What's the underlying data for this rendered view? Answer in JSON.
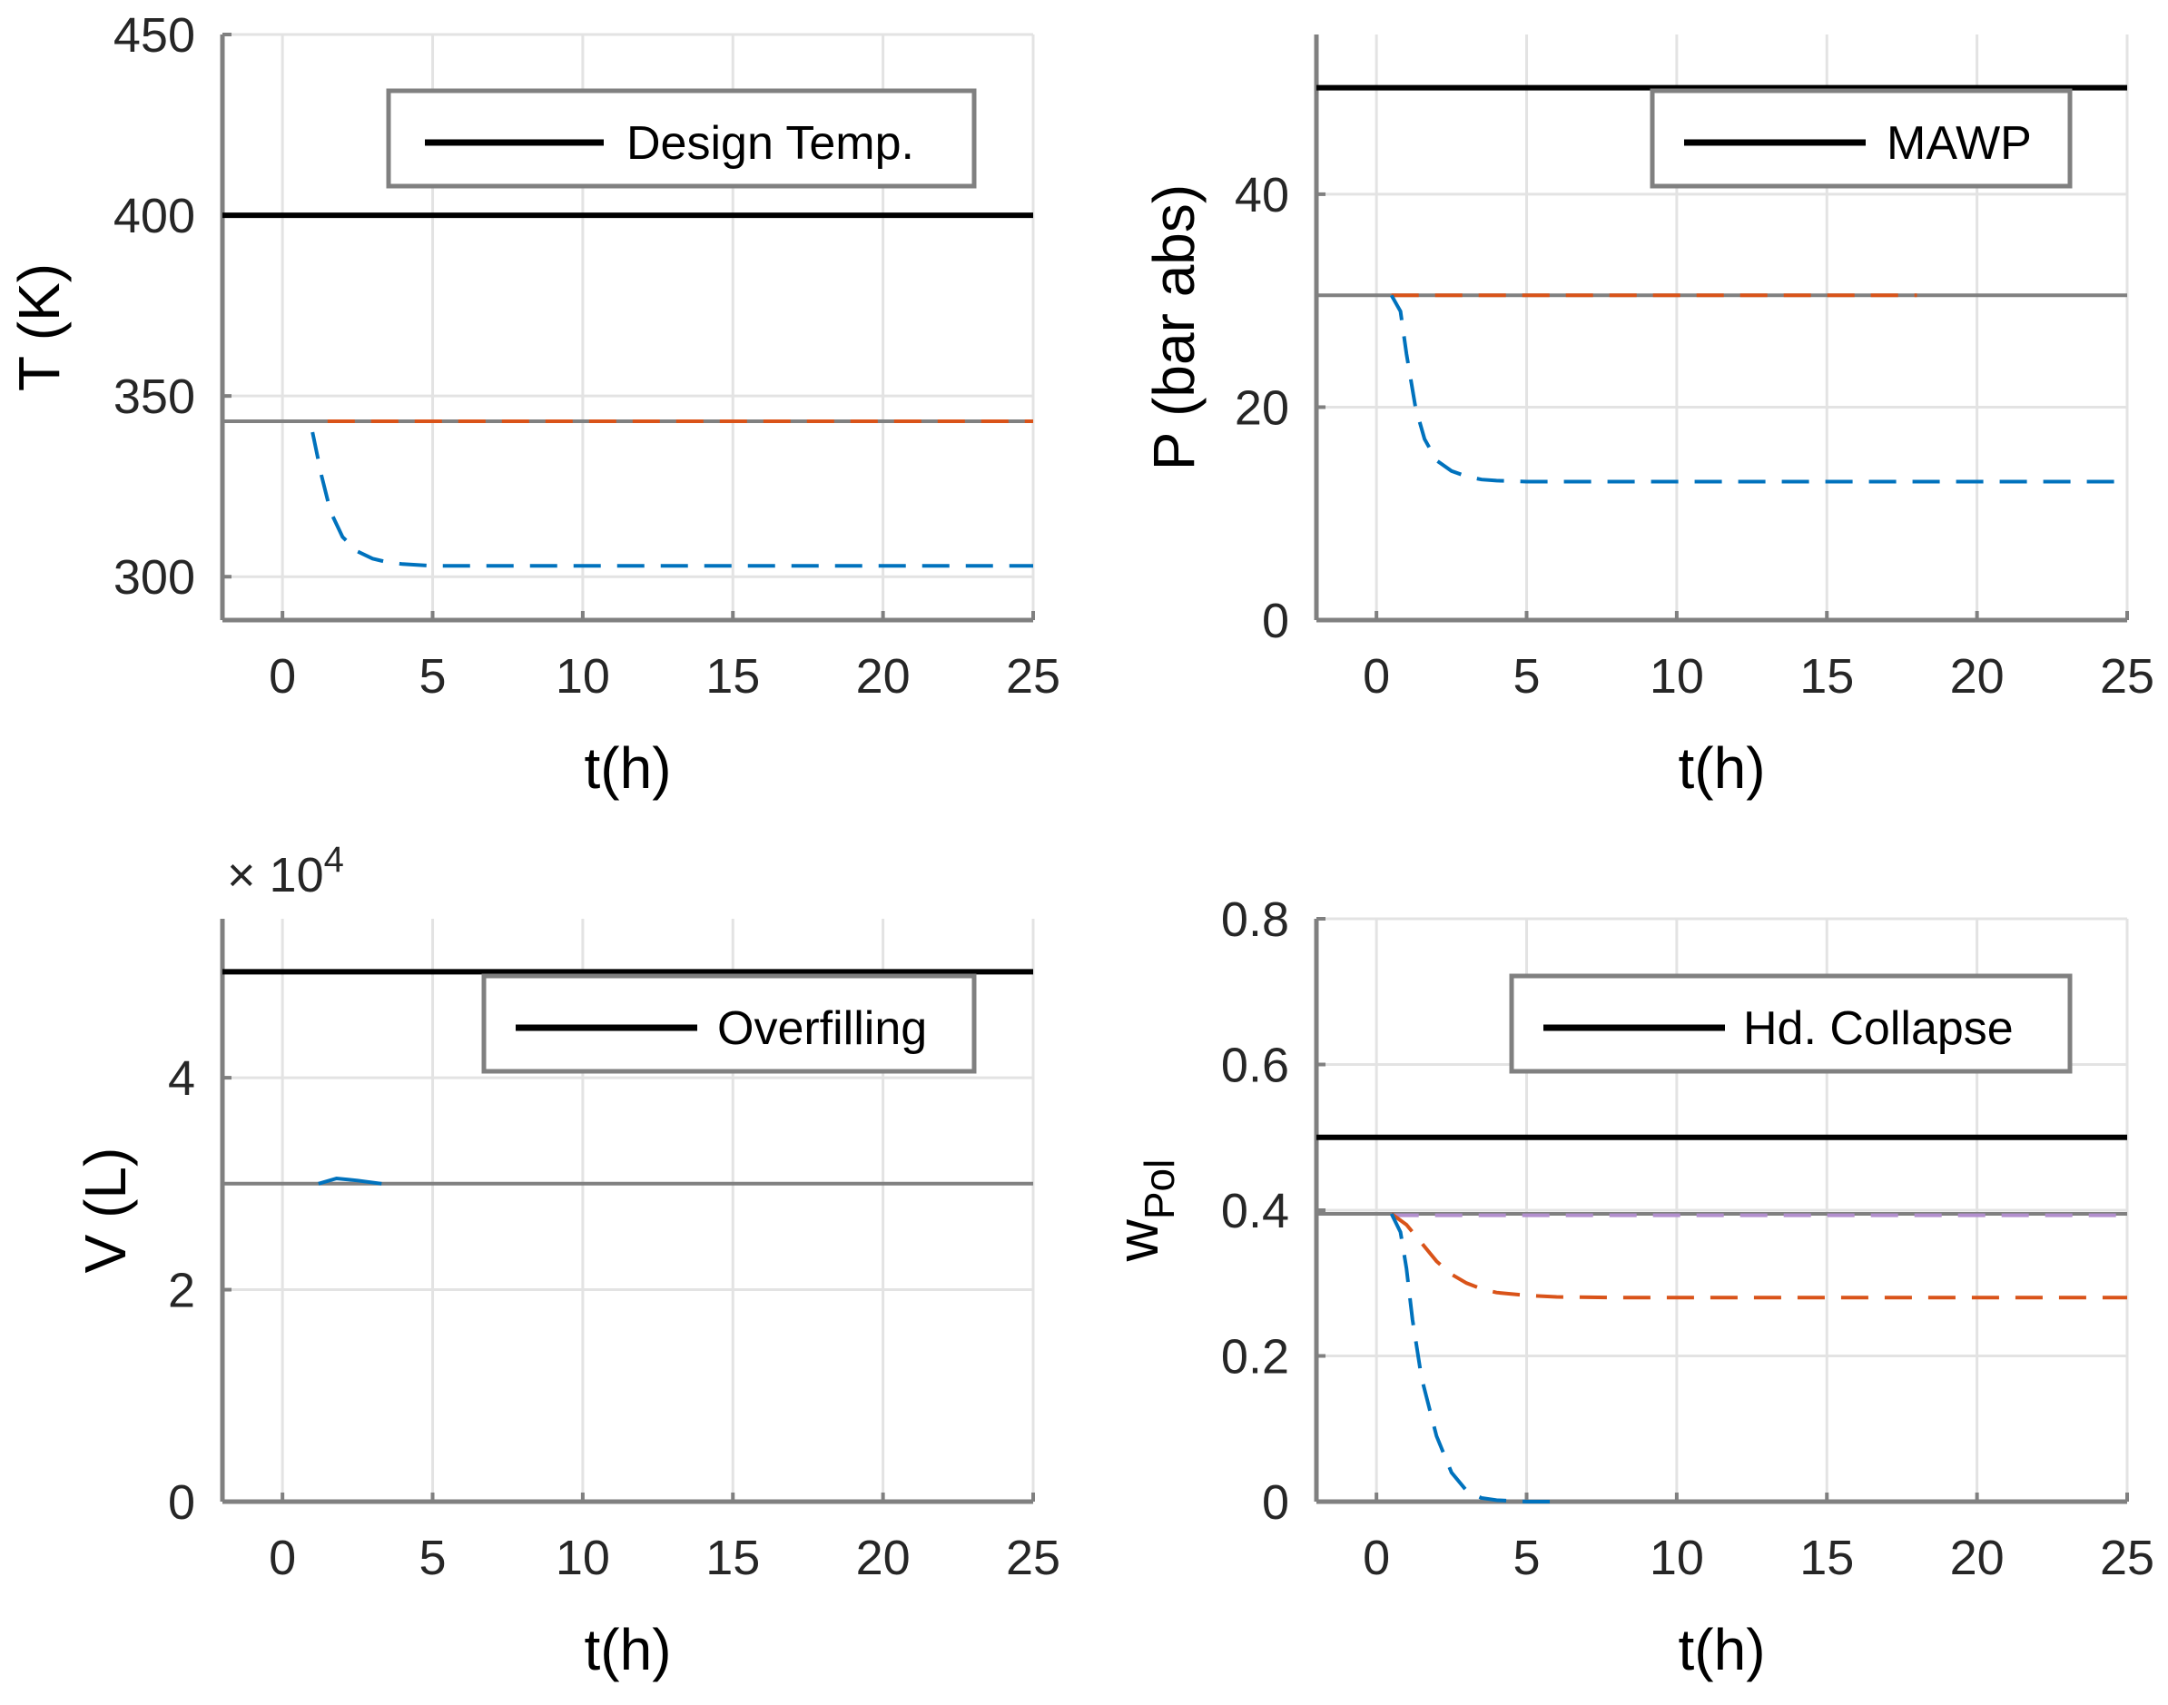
{
  "chart_data": [
    {
      "id": "temperature",
      "type": "line",
      "ylabel": "T (K)",
      "xlabel": "t(h)",
      "xlim": [
        -2,
        25
      ],
      "ylim": [
        288,
        450
      ],
      "xticks": [
        0,
        5,
        10,
        15,
        20,
        25
      ],
      "yticks": [
        300,
        350,
        400,
        450
      ],
      "ytick_labels": [
        "300",
        "350",
        "400",
        "450"
      ],
      "legend": {
        "label": "Design Temp.",
        "position": "top-right"
      },
      "series": [
        {
          "name": "Design Temp.",
          "style": "solid",
          "color": "#000000",
          "x": [
            -2,
            25
          ],
          "y": [
            400,
            400
          ]
        },
        {
          "name": "initial",
          "style": "solid",
          "color": "#808080",
          "x": [
            -2,
            25
          ],
          "y": [
            343,
            343
          ]
        },
        {
          "name": "series-orange",
          "style": "dashed",
          "color": "#d95319",
          "x": [
            1.5,
            25
          ],
          "y": [
            343,
            343
          ]
        },
        {
          "name": "series-blue",
          "style": "dashed",
          "color": "#0072bd",
          "x": [
            1,
            1.3,
            1.6,
            2,
            2.5,
            3,
            3.5,
            4,
            5,
            7,
            10,
            15,
            20,
            25
          ],
          "y": [
            340,
            328,
            318,
            311,
            307,
            305,
            304,
            303.5,
            303,
            303,
            303,
            303,
            303,
            303
          ]
        }
      ]
    },
    {
      "id": "pressure",
      "type": "line",
      "ylabel": "P (bar abs)",
      "xlabel": "t(h)",
      "xlim": [
        -2,
        25
      ],
      "ylim": [
        0,
        55
      ],
      "xticks": [
        0,
        5,
        10,
        15,
        20,
        25
      ],
      "yticks": [
        0,
        20,
        40
      ],
      "ytick_labels": [
        "0",
        "20",
        "40"
      ],
      "legend": {
        "label": "MAWP",
        "position": "top-right"
      },
      "series": [
        {
          "name": "MAWP",
          "style": "solid",
          "color": "#000000",
          "x": [
            -2,
            25
          ],
          "y": [
            50,
            50
          ]
        },
        {
          "name": "initial",
          "style": "solid",
          "color": "#808080",
          "x": [
            -2,
            25
          ],
          "y": [
            30.5,
            30.5
          ]
        },
        {
          "name": "series-orange",
          "style": "dashed",
          "color": "#d95319",
          "x": [
            0.5,
            18
          ],
          "y": [
            30.5,
            30.5
          ]
        },
        {
          "name": "series-blue",
          "style": "dashed",
          "color": "#0072bd",
          "x": [
            0.5,
            0.8,
            1,
            1.3,
            1.6,
            2,
            2.5,
            3,
            3.5,
            4,
            5,
            7,
            10,
            15,
            20,
            25
          ],
          "y": [
            30.5,
            29,
            25,
            20,
            17,
            15,
            14,
            13.5,
            13.2,
            13.1,
            13,
            13,
            13,
            13,
            13,
            13
          ]
        }
      ]
    },
    {
      "id": "volume",
      "type": "line",
      "ylabel": "V (L)",
      "xlabel": "t(h)",
      "exponent_label": "× 10",
      "exponent_power": "4",
      "xlim": [
        -2,
        25
      ],
      "ylim": [
        0,
        5.5
      ],
      "xticks": [
        0,
        5,
        10,
        15,
        20,
        25
      ],
      "yticks": [
        0,
        2,
        4
      ],
      "ytick_labels": [
        "0",
        "2",
        "4"
      ],
      "legend": {
        "label": "Overfilling",
        "position": "top-right"
      },
      "series": [
        {
          "name": "Overfilling",
          "style": "solid",
          "color": "#000000",
          "x": [
            -2,
            25
          ],
          "y": [
            5,
            5
          ]
        },
        {
          "name": "initial",
          "style": "solid",
          "color": "#808080",
          "x": [
            -2,
            25
          ],
          "y": [
            3,
            3
          ]
        },
        {
          "name": "series-blue",
          "style": "solid",
          "color": "#0072bd",
          "x": [
            1.2,
            1.8,
            2.5,
            3.3
          ],
          "y": [
            3,
            3.05,
            3.03,
            3
          ]
        }
      ]
    },
    {
      "id": "polymer-fraction",
      "type": "line",
      "ylabel": "w",
      "ylabel_sub": "Pol",
      "xlabel": "t(h)",
      "xlim": [
        -2,
        25
      ],
      "ylim": [
        0,
        0.8
      ],
      "xticks": [
        0,
        5,
        10,
        15,
        20,
        25
      ],
      "yticks": [
        0,
        0.2,
        0.4,
        0.6,
        0.8
      ],
      "ytick_labels": [
        "0",
        "0.2",
        "0.4",
        "0.6",
        "0.8"
      ],
      "legend": {
        "label": "Hd. Collapse",
        "position": "top-right"
      },
      "series": [
        {
          "name": "Hd. Collapse",
          "style": "solid",
          "color": "#000000",
          "x": [
            -2,
            25
          ],
          "y": [
            0.5,
            0.5
          ]
        },
        {
          "name": "initial",
          "style": "solid",
          "color": "#808080",
          "x": [
            -2,
            25
          ],
          "y": [
            0.395,
            0.395
          ]
        },
        {
          "name": "series-purple",
          "style": "dashed",
          "color": "#b28fce",
          "x": [
            0.5,
            25
          ],
          "y": [
            0.393,
            0.393
          ]
        },
        {
          "name": "series-orange",
          "style": "dashed",
          "color": "#d95319",
          "x": [
            0.5,
            1,
            1.5,
            2,
            2.5,
            3,
            3.5,
            4,
            5,
            6,
            8,
            10,
            15,
            20,
            25
          ],
          "y": [
            0.395,
            0.38,
            0.355,
            0.33,
            0.312,
            0.3,
            0.292,
            0.287,
            0.283,
            0.281,
            0.28,
            0.28,
            0.28,
            0.28,
            0.28
          ]
        },
        {
          "name": "series-blue",
          "style": "dashed",
          "color": "#0072bd",
          "x": [
            0.5,
            0.8,
            1,
            1.2,
            1.5,
            2,
            2.5,
            3,
            3.5,
            4,
            5,
            6
          ],
          "y": [
            0.395,
            0.37,
            0.32,
            0.25,
            0.17,
            0.09,
            0.04,
            0.015,
            0.005,
            0.002,
            0,
            0
          ]
        }
      ]
    }
  ]
}
